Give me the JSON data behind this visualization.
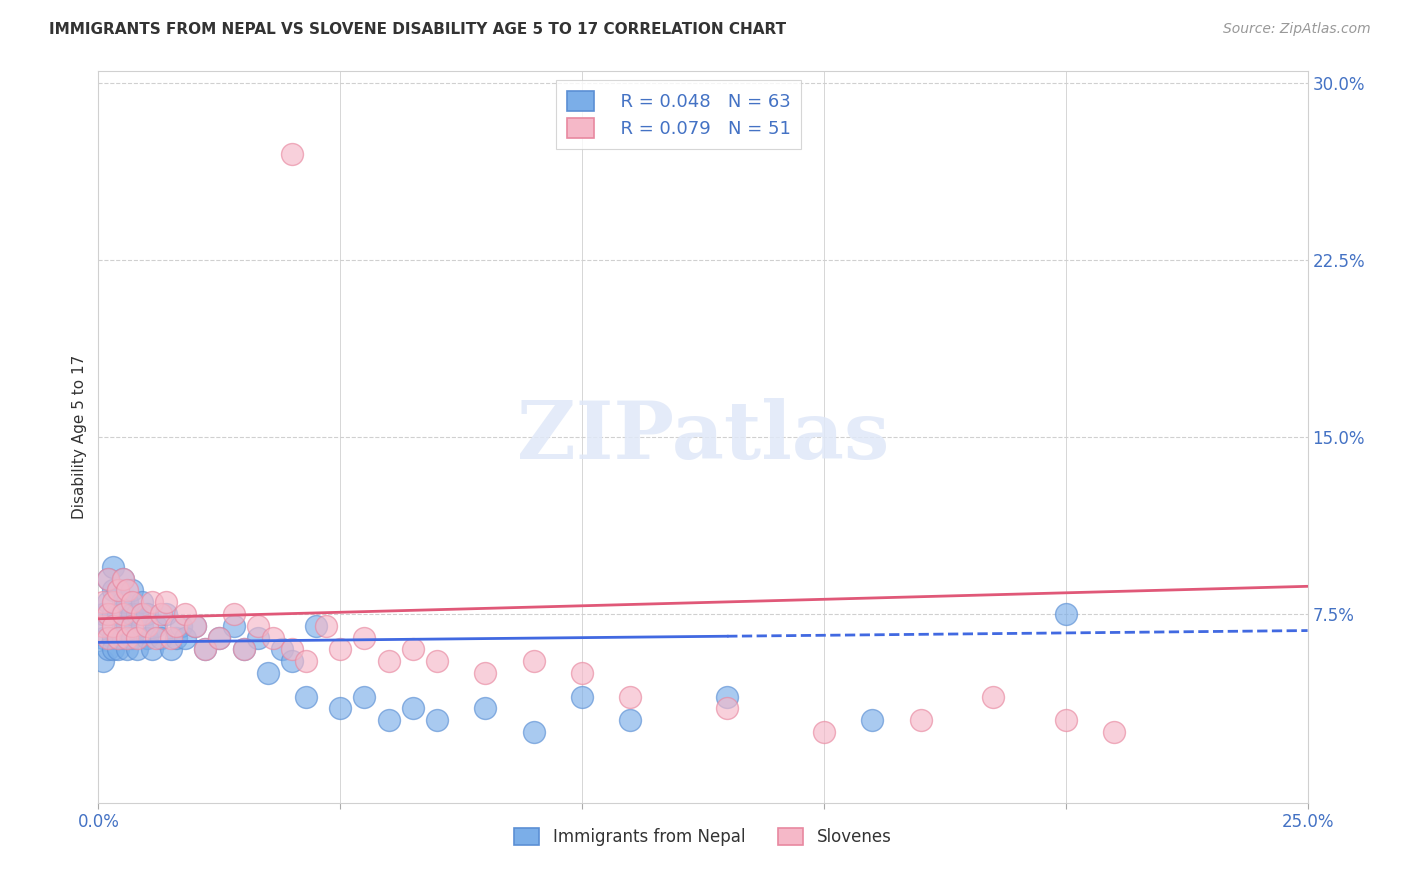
{
  "title": "IMMIGRANTS FROM NEPAL VS SLOVENE DISABILITY AGE 5 TO 17 CORRELATION CHART",
  "source": "Source: ZipAtlas.com",
  "ylabel": "Disability Age 5 to 17",
  "x_min": 0.0,
  "x_max": 0.25,
  "y_min": -0.005,
  "y_max": 0.305,
  "nepal_color": "#7baee8",
  "nepal_edge_color": "#5b8fd4",
  "slovene_color": "#f5b8c8",
  "slovene_edge_color": "#e888a0",
  "nepal_line_color": "#4169e1",
  "slovene_line_color": "#e05878",
  "legend_label1": "Immigrants from Nepal",
  "legend_label2": "Slovenes",
  "legend_r_nepal": "R = 0.048",
  "legend_n_nepal": "N = 63",
  "legend_r_slovene": "R = 0.079",
  "legend_n_slovene": "N = 51",
  "nepal_line_intercept": 0.063,
  "nepal_line_slope": 0.02,
  "slovene_line_intercept": 0.073,
  "slovene_line_slope": 0.055,
  "nepal_x": [
    0.001,
    0.001,
    0.001,
    0.002,
    0.002,
    0.002,
    0.002,
    0.003,
    0.003,
    0.003,
    0.003,
    0.003,
    0.004,
    0.004,
    0.004,
    0.004,
    0.005,
    0.005,
    0.005,
    0.005,
    0.006,
    0.006,
    0.006,
    0.007,
    0.007,
    0.007,
    0.008,
    0.008,
    0.009,
    0.009,
    0.01,
    0.01,
    0.011,
    0.012,
    0.013,
    0.014,
    0.015,
    0.016,
    0.017,
    0.018,
    0.02,
    0.022,
    0.025,
    0.028,
    0.03,
    0.033,
    0.035,
    0.038,
    0.04,
    0.043,
    0.045,
    0.05,
    0.055,
    0.06,
    0.065,
    0.07,
    0.08,
    0.09,
    0.1,
    0.11,
    0.13,
    0.16,
    0.2
  ],
  "nepal_y": [
    0.065,
    0.075,
    0.055,
    0.07,
    0.08,
    0.06,
    0.09,
    0.065,
    0.075,
    0.06,
    0.085,
    0.095,
    0.065,
    0.075,
    0.085,
    0.06,
    0.07,
    0.08,
    0.065,
    0.09,
    0.07,
    0.08,
    0.06,
    0.075,
    0.085,
    0.065,
    0.06,
    0.075,
    0.07,
    0.08,
    0.065,
    0.075,
    0.06,
    0.07,
    0.065,
    0.075,
    0.06,
    0.065,
    0.07,
    0.065,
    0.07,
    0.06,
    0.065,
    0.07,
    0.06,
    0.065,
    0.05,
    0.06,
    0.055,
    0.04,
    0.07,
    0.035,
    0.04,
    0.03,
    0.035,
    0.03,
    0.035,
    0.025,
    0.04,
    0.03,
    0.04,
    0.03,
    0.075
  ],
  "slovene_x": [
    0.001,
    0.001,
    0.002,
    0.002,
    0.002,
    0.003,
    0.003,
    0.004,
    0.004,
    0.005,
    0.005,
    0.006,
    0.006,
    0.007,
    0.007,
    0.008,
    0.009,
    0.01,
    0.011,
    0.012,
    0.013,
    0.014,
    0.015,
    0.016,
    0.018,
    0.02,
    0.022,
    0.025,
    0.028,
    0.03,
    0.033,
    0.036,
    0.04,
    0.043,
    0.047,
    0.05,
    0.055,
    0.06,
    0.065,
    0.07,
    0.08,
    0.09,
    0.1,
    0.11,
    0.13,
    0.15,
    0.17,
    0.185,
    0.2,
    0.21,
    0.04
  ],
  "slovene_y": [
    0.08,
    0.07,
    0.075,
    0.09,
    0.065,
    0.08,
    0.07,
    0.065,
    0.085,
    0.075,
    0.09,
    0.065,
    0.085,
    0.07,
    0.08,
    0.065,
    0.075,
    0.07,
    0.08,
    0.065,
    0.075,
    0.08,
    0.065,
    0.07,
    0.075,
    0.07,
    0.06,
    0.065,
    0.075,
    0.06,
    0.07,
    0.065,
    0.06,
    0.055,
    0.07,
    0.06,
    0.065,
    0.055,
    0.06,
    0.055,
    0.05,
    0.055,
    0.05,
    0.04,
    0.035,
    0.025,
    0.03,
    0.04,
    0.03,
    0.025,
    0.27
  ]
}
